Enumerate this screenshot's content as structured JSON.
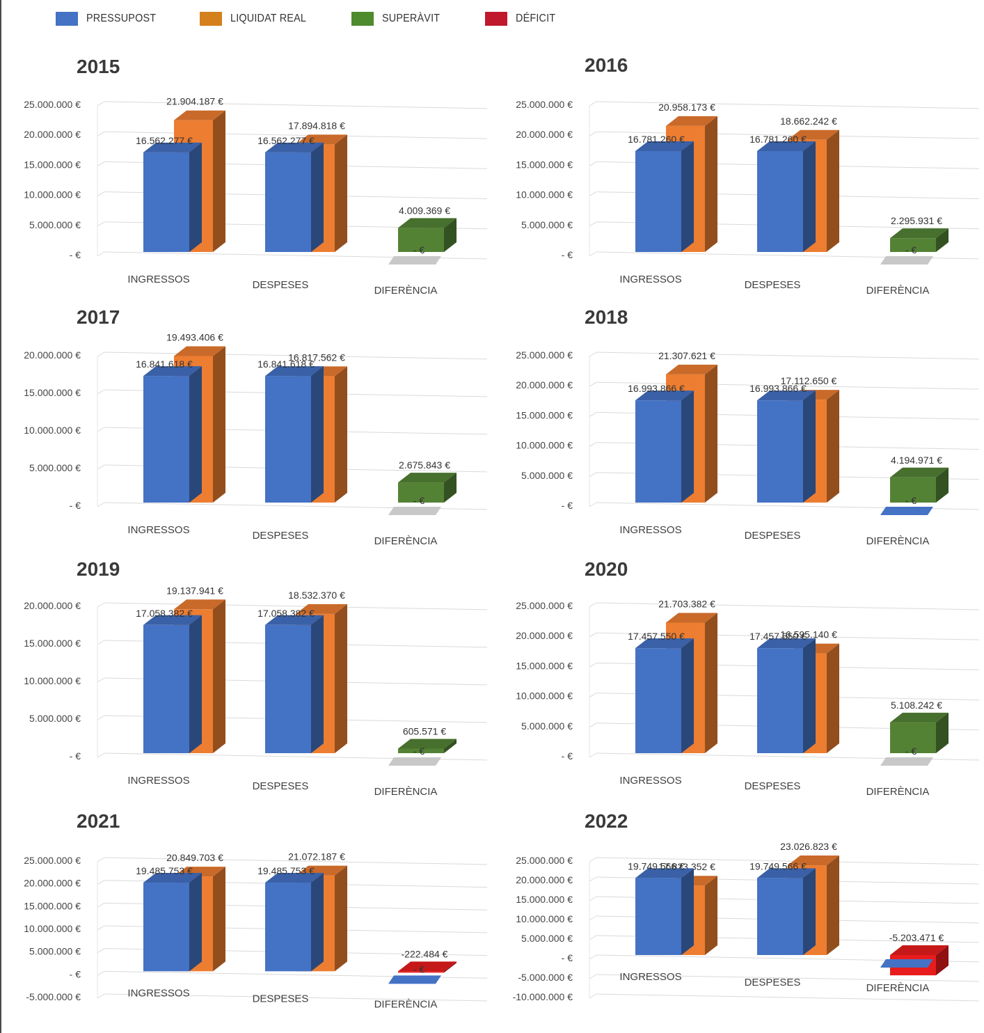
{
  "legend": [
    {
      "label": "PRESSUPOST",
      "color": "#4472c4"
    },
    {
      "label": "LIQUIDAT REAL",
      "color": "#d4801c"
    },
    {
      "label": "SUPERÀVIT",
      "color": "#4e8a2e"
    },
    {
      "label": "DÉFICIT",
      "color": "#c0182c"
    }
  ],
  "colors": {
    "pressupost": "#4472c4",
    "liquidat": "#ed7d31",
    "superavit": "#548235",
    "deficit": "#e81c1c",
    "zero": "#c8c8c8",
    "grid": "#d9d9d9"
  },
  "chart_data": [
    {
      "type": "bar",
      "title": "2015",
      "categories": [
        "INGRESSOS",
        "DESPESES",
        "DIFERÈNCIA"
      ],
      "ylim": [
        0,
        25000000
      ],
      "ticks": [
        0,
        5000000,
        10000000,
        15000000,
        20000000,
        25000000
      ],
      "tick_labels": [
        "- €",
        "5.000.000 €",
        "10.000.000 €",
        "15.000.000 €",
        "20.000.000 €",
        "25.000.000 €"
      ],
      "series": [
        {
          "name": "PRESSUPOST",
          "values": [
            16562277,
            16562277,
            0
          ],
          "labels": [
            "16.562.277 €",
            "16.562.277 €",
            "- €"
          ]
        },
        {
          "name": "LIQUIDAT REAL",
          "values": [
            21904187,
            17894818,
            4009369
          ],
          "labels": [
            "21.904.187 €",
            "17.894.818 €",
            "4.009.369 €"
          ]
        }
      ]
    },
    {
      "type": "bar",
      "title": "2016",
      "categories": [
        "INGRESSOS",
        "DESPESES",
        "DIFERÈNCIA"
      ],
      "ylim": [
        0,
        25000000
      ],
      "ticks": [
        0,
        5000000,
        10000000,
        15000000,
        20000000,
        25000000
      ],
      "tick_labels": [
        "- €",
        "5.000.000 €",
        "10.000.000 €",
        "15.000.000 €",
        "20.000.000 €",
        "25.000.000 €"
      ],
      "series": [
        {
          "name": "PRESSUPOST",
          "values": [
            16781260,
            16781260,
            0
          ],
          "labels": [
            "16.781.260 €",
            "16.781.260 €",
            "- €"
          ]
        },
        {
          "name": "LIQUIDAT REAL",
          "values": [
            20958173,
            18662242,
            2295931
          ],
          "labels": [
            "20.958.173 €",
            "18.662.242 €",
            "2.295.931 €"
          ]
        }
      ]
    },
    {
      "type": "bar",
      "title": "2017",
      "categories": [
        "INGRESSOS",
        "DESPESES",
        "DIFERÈNCIA"
      ],
      "ylim": [
        0,
        20000000
      ],
      "ticks": [
        0,
        5000000,
        10000000,
        15000000,
        20000000
      ],
      "tick_labels": [
        "- €",
        "5.000.000 €",
        "10.000.000 €",
        "15.000.000 €",
        "20.000.000 €"
      ],
      "series": [
        {
          "name": "PRESSUPOST",
          "values": [
            16841618,
            16841618,
            0
          ],
          "labels": [
            "16.841.618 €",
            "16.841.618 €",
            "- €"
          ]
        },
        {
          "name": "LIQUIDAT REAL",
          "values": [
            19493406,
            16817562,
            2675843
          ],
          "labels": [
            "19.493.406 €",
            "16.817.562 €",
            "2.675.843 €"
          ]
        }
      ]
    },
    {
      "type": "bar",
      "title": "2018",
      "categories": [
        "INGRESSOS",
        "DESPESES",
        "DIFERÈNCIA"
      ],
      "ylim": [
        0,
        25000000
      ],
      "ticks": [
        0,
        5000000,
        10000000,
        15000000,
        20000000,
        25000000
      ],
      "tick_labels": [
        "- €",
        "5.000.000 €",
        "10.000.000 €",
        "15.000.000 €",
        "20.000.000 €",
        "25.000.000 €"
      ],
      "series": [
        {
          "name": "PRESSUPOST",
          "values": [
            16993866,
            16993866,
            0
          ],
          "labels": [
            "16.993.866 €",
            "16.993.866 €",
            "- €"
          ]
        },
        {
          "name": "LIQUIDAT REAL",
          "values": [
            21307621,
            17112650,
            4194971
          ],
          "labels": [
            "21.307.621 €",
            "17.112.650 €",
            "4.194.971 €"
          ]
        }
      ]
    },
    {
      "type": "bar",
      "title": "2019",
      "categories": [
        "INGRESSOS",
        "DESPESES",
        "DIFERÈNCIA"
      ],
      "ylim": [
        0,
        20000000
      ],
      "ticks": [
        0,
        5000000,
        10000000,
        15000000,
        20000000
      ],
      "tick_labels": [
        "- €",
        "5.000.000 €",
        "10.000.000 €",
        "15.000.000 €",
        "20.000.000 €"
      ],
      "series": [
        {
          "name": "PRESSUPOST",
          "values": [
            17058382,
            17058382,
            0
          ],
          "labels": [
            "17.058.382 €",
            "17.058.382 €",
            "- €"
          ]
        },
        {
          "name": "LIQUIDAT REAL",
          "values": [
            19137941,
            18532370,
            605571
          ],
          "labels": [
            "19.137.941 €",
            "18.532.370 €",
            "605.571 €"
          ]
        }
      ]
    },
    {
      "type": "bar",
      "title": "2020",
      "categories": [
        "INGRESSOS",
        "DESPESES",
        "DIFERÈNCIA"
      ],
      "ylim": [
        0,
        25000000
      ],
      "ticks": [
        0,
        5000000,
        10000000,
        15000000,
        20000000,
        25000000
      ],
      "tick_labels": [
        "- €",
        "5.000.000 €",
        "10.000.000 €",
        "15.000.000 €",
        "20.000.000 €",
        "25.000.000 €"
      ],
      "series": [
        {
          "name": "PRESSUPOST",
          "values": [
            17457550,
            17457550,
            0
          ],
          "labels": [
            "17.457.550 €",
            "17.457.550 €",
            "- €"
          ]
        },
        {
          "name": "LIQUIDAT REAL",
          "values": [
            21703382,
            16595140,
            5108242
          ],
          "labels": [
            "21.703.382 €",
            "16.595.140 €",
            "5.108.242 €"
          ]
        }
      ]
    },
    {
      "type": "bar",
      "title": "2021",
      "categories": [
        "INGRESSOS",
        "DESPESES",
        "DIFERÈNCIA"
      ],
      "ylim": [
        -5000000,
        25000000
      ],
      "ticks": [
        -5000000,
        0,
        5000000,
        10000000,
        15000000,
        20000000,
        25000000
      ],
      "tick_labels": [
        "-5.000.000 €",
        "- €",
        "5.000.000 €",
        "10.000.000 €",
        "15.000.000 €",
        "20.000.000 €",
        "25.000.000 €"
      ],
      "series": [
        {
          "name": "PRESSUPOST",
          "values": [
            19485753,
            19485753,
            0
          ],
          "labels": [
            "19.485.753 €",
            "19.485.753 €",
            "- €"
          ]
        },
        {
          "name": "LIQUIDAT REAL",
          "values": [
            20849703,
            21072187,
            -222484
          ],
          "labels": [
            "20.849.703 €",
            "21.072.187 €",
            "-222.484 €"
          ]
        }
      ]
    },
    {
      "type": "bar",
      "title": "2022",
      "categories": [
        "INGRESSOS",
        "DESPESES",
        "DIFERÈNCIA"
      ],
      "ylim": [
        -10000000,
        25000000
      ],
      "ticks": [
        -10000000,
        -5000000,
        0,
        5000000,
        10000000,
        15000000,
        20000000,
        25000000
      ],
      "tick_labels": [
        "-10.000.000 €",
        "-5.000.000 €",
        "- €",
        "5.000.000 €",
        "10.000.000 €",
        "15.000.000 €",
        "20.000.000 €",
        "25.000.000 €"
      ],
      "series": [
        {
          "name": "PRESSUPOST",
          "values": [
            19749566,
            19749566,
            0
          ],
          "labels": [
            "19.749.566 €",
            "19.749.566 €",
            ""
          ]
        },
        {
          "name": "LIQUIDAT REAL",
          "values": [
            17823352,
            23026823,
            -5203471
          ],
          "labels": [
            "17.823.352 €",
            "23.026.823 €",
            "-5.203.471 €"
          ]
        }
      ]
    }
  ]
}
